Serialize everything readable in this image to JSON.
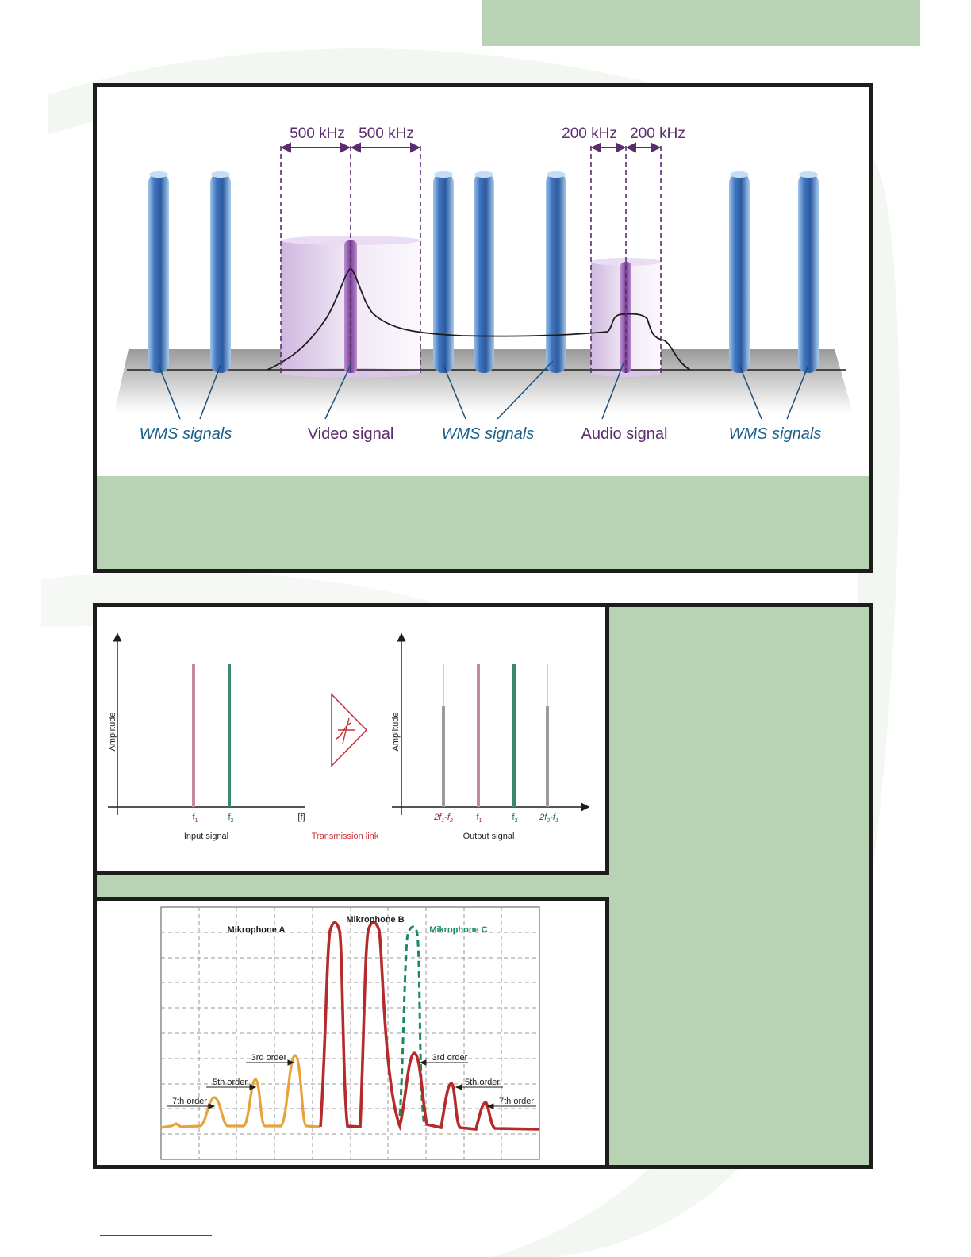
{
  "spectrum_figure": {
    "bandwidth_labels": {
      "video_left": "500 kHz",
      "video_right": "500 kHz",
      "audio_left": "200 kHz",
      "audio_right": "200 kHz"
    },
    "signal_labels": {
      "wms_left": "WMS signals",
      "video": "Video signal",
      "wms_middle": "WMS signals",
      "audio": "Audio signal",
      "wms_right": "WMS signals"
    }
  },
  "intermod_figure": {
    "left_chart": {
      "ylabel": "Amplitude",
      "xunit": "[f]",
      "tick_f1": "f",
      "tick_f1_sub": "1",
      "tick_f2": "f",
      "tick_f2_sub": "2",
      "caption": "Input signal"
    },
    "transmission_label": "Transmission link",
    "right_chart": {
      "ylabel": "Amplitude",
      "tick_2f1f2_a": "2f",
      "tick_2f1f2_b": "1",
      "tick_2f1f2_c": "-f",
      "tick_2f1f2_d": "2",
      "tick_f1": "f",
      "tick_f1_sub": "1",
      "tick_f2": "f",
      "tick_f2_sub": "2",
      "tick_2f2f1_a": "2f",
      "tick_2f2f1_b": "2",
      "tick_2f2f1_c": "-f",
      "tick_2f2f1_d": "1",
      "caption": "Output signal"
    }
  },
  "oscilloscope_figure": {
    "mic_a": "Mikrophone A",
    "mic_b": "Mikrophone B",
    "mic_c": "Mikrophone C",
    "order_labels": {
      "left_7th": "7th order",
      "left_5th": "5th order",
      "left_3rd": "3rd order",
      "right_3rd": "3rd order",
      "right_5th": "5th order",
      "right_7th": "7th order"
    }
  },
  "colors": {
    "green_band": "#b8d2b4",
    "wms_blue": "#3a6fb5",
    "video_purple": "#8a4fa3",
    "label_teal": "#1a5f8a",
    "mic_red": "#b52a2a",
    "mic_orange": "#e8a23a",
    "mic_green": "#1b8a5a",
    "transmission_red": "#c8323a"
  }
}
